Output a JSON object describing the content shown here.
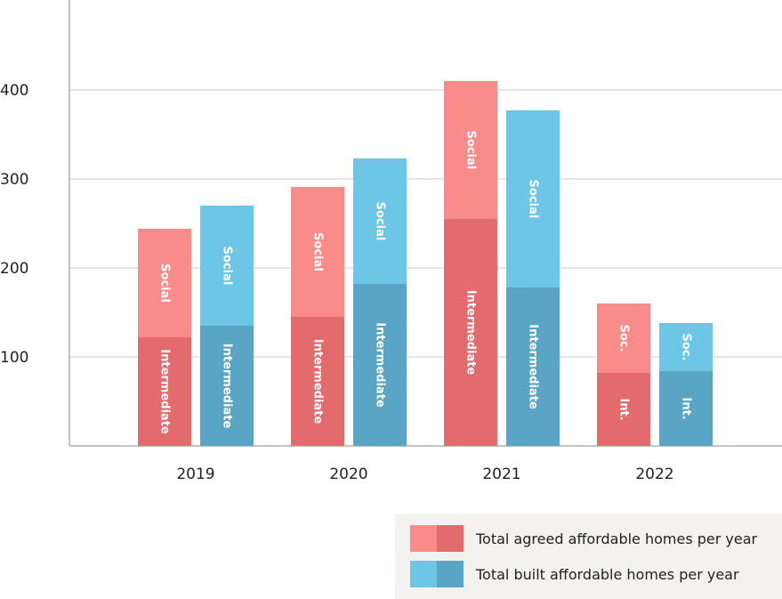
{
  "chart_data": {
    "type": "bar",
    "stacked": true,
    "categories": [
      "2019",
      "2020",
      "2021",
      "2022"
    ],
    "ylim": [
      0,
      500
    ],
    "yticks": [
      100,
      200,
      300,
      400
    ],
    "grid": true,
    "series": [
      {
        "name": "Total agreed affordable homes per year",
        "key": "agreed",
        "segments": [
          {
            "label": "Intermediate",
            "values": [
              122,
              145,
              255,
              82
            ],
            "short_labels": [
              "Intermediate",
              "Intermediate",
              "Intermediate",
              "Int."
            ]
          },
          {
            "label": "Social",
            "values": [
              122,
              146,
              155,
              78
            ],
            "short_labels": [
              "Social",
              "Social",
              "Social",
              "Soc."
            ]
          }
        ]
      },
      {
        "name": "Total built affordable homes per year",
        "key": "built",
        "segments": [
          {
            "label": "Intermediate",
            "values": [
              135,
              182,
              178,
              84
            ],
            "short_labels": [
              "Intermediate",
              "Intermediate",
              "Intermediate",
              "Int."
            ]
          },
          {
            "label": "Social",
            "values": [
              135,
              141,
              199,
              54
            ],
            "short_labels": [
              "Social",
              "Social",
              "Social",
              "Soc."
            ]
          }
        ]
      }
    ],
    "legend_position": "bottom-right"
  },
  "colors": {
    "agreed_intermediate": "#e36b6d",
    "agreed_social": "#fa8b8b",
    "built_intermediate": "#5aa5c6",
    "built_social": "#6ec6e6",
    "grid": "#dddddd",
    "axis": "#b0b0b0",
    "legend_bg": "#f3f2f1"
  }
}
